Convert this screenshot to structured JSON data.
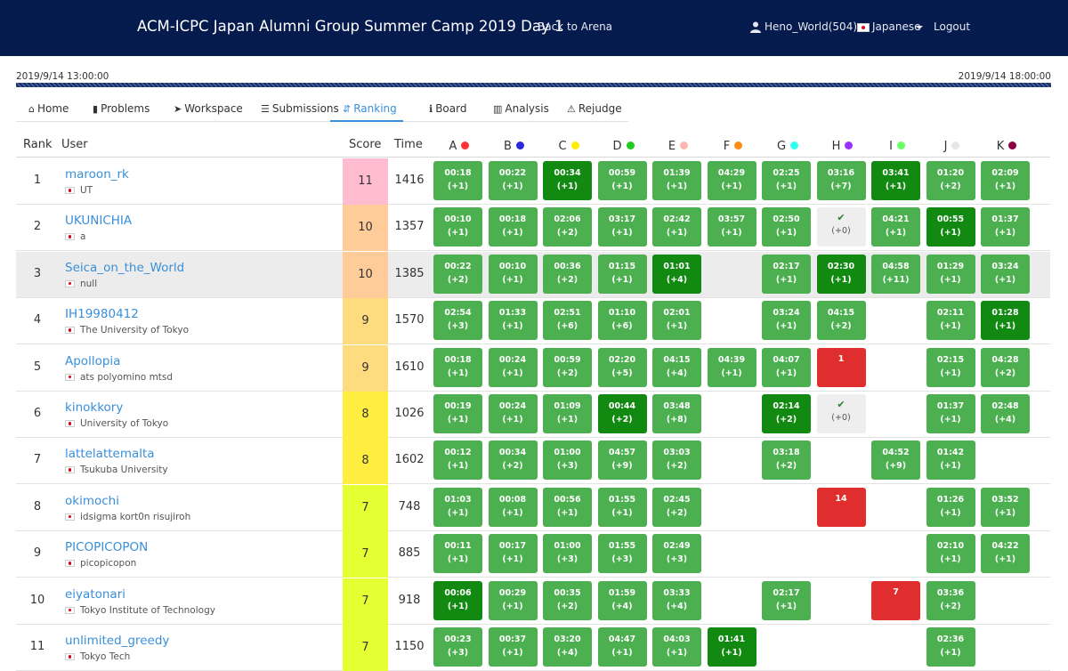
{
  "nav": {
    "title": "ACM-ICPC Japan Alumni Group Summer Camp 2019 Day 1",
    "back": "Back to Arena",
    "user": "Heno_World(504)",
    "lang": "Japanese",
    "logout": "Logout"
  },
  "contest": {
    "start": "2019/9/14 13:00:00",
    "end": "2019/9/14 18:00:00",
    "progress": 1.0
  },
  "tabs": [
    {
      "label": "Home",
      "icon": "home-icon",
      "glyph": "⌂"
    },
    {
      "label": "Problems",
      "icon": "file-icon",
      "glyph": "▮"
    },
    {
      "label": "Workspace",
      "icon": "send-icon",
      "glyph": "➤"
    },
    {
      "label": "Submissions",
      "icon": "list-icon",
      "glyph": "☰"
    },
    {
      "label": "Ranking",
      "icon": "sort-icon",
      "glyph": "⇵"
    },
    {
      "label": "Board",
      "icon": "info-icon",
      "glyph": "ℹ"
    },
    {
      "label": "Analysis",
      "icon": "chart-icon",
      "glyph": "▥"
    },
    {
      "label": "Rejudge",
      "icon": "warning-icon",
      "glyph": "⚠"
    }
  ],
  "active_tab": "Ranking",
  "headers": {
    "rank": "Rank",
    "user": "User",
    "score": "Score",
    "time": "Time"
  },
  "problems": [
    {
      "id": "A",
      "color": "#ff3333"
    },
    {
      "id": "B",
      "color": "#2b2bdb"
    },
    {
      "id": "C",
      "color": "#ffee00"
    },
    {
      "id": "D",
      "color": "#1fcc1f"
    },
    {
      "id": "E",
      "color": "#ffb8b0"
    },
    {
      "id": "F",
      "color": "#ff8c1a"
    },
    {
      "id": "G",
      "color": "#33ffee"
    },
    {
      "id": "H",
      "color": "#9b30ff"
    },
    {
      "id": "I",
      "color": "#66ff66"
    },
    {
      "id": "J",
      "color": "#e6e6e6"
    },
    {
      "id": "K",
      "color": "#8b0040"
    }
  ],
  "rows": [
    {
      "rank": "1",
      "name": "maroon_rk",
      "affiliation": "UT",
      "score": "11",
      "score_color": "#ffbcd0",
      "time": "1416",
      "highlight": false,
      "cells": [
        [
          "ac",
          "00:18",
          "(+1)"
        ],
        [
          "ac",
          "00:22",
          "(+1)"
        ],
        [
          "fa",
          "00:34",
          "(+1)"
        ],
        [
          "ac",
          "00:59",
          "(+1)"
        ],
        [
          "ac",
          "01:39",
          "(+1)"
        ],
        [
          "ac",
          "04:29",
          "(+1)"
        ],
        [
          "ac",
          "02:25",
          "(+1)"
        ],
        [
          "ac",
          "03:16",
          "(+7)"
        ],
        [
          "fa",
          "03:41",
          "(+1)"
        ],
        [
          "ac",
          "01:20",
          "(+2)"
        ],
        [
          "ac",
          "02:09",
          "(+1)"
        ]
      ]
    },
    {
      "rank": "2",
      "name": "UKUNICHIA",
      "affiliation": "a",
      "score": "10",
      "score_color": "#ffcc99",
      "time": "1357",
      "highlight": false,
      "cells": [
        [
          "ac",
          "00:10",
          "(+1)"
        ],
        [
          "ac",
          "00:18",
          "(+1)"
        ],
        [
          "ac",
          "02:06",
          "(+2)"
        ],
        [
          "ac",
          "03:17",
          "(+1)"
        ],
        [
          "ac",
          "02:42",
          "(+1)"
        ],
        [
          "ac",
          "03:57",
          "(+1)"
        ],
        [
          "ac",
          "02:50",
          "(+1)"
        ],
        [
          "pd",
          "✔",
          "(+0)"
        ],
        [
          "ac",
          "04:21",
          "(+1)"
        ],
        [
          "fa",
          "00:55",
          "(+1)"
        ],
        [
          "ac",
          "01:37",
          "(+1)"
        ]
      ]
    },
    {
      "rank": "3",
      "name": "Seica_on_the_World",
      "affiliation": "null",
      "score": "10",
      "score_color": "#ffcc99",
      "time": "1385",
      "highlight": true,
      "cells": [
        [
          "ac",
          "00:22",
          "(+2)"
        ],
        [
          "ac",
          "00:10",
          "(+1)"
        ],
        [
          "ac",
          "00:36",
          "(+2)"
        ],
        [
          "ac",
          "01:15",
          "(+1)"
        ],
        [
          "fa",
          "01:01",
          "(+4)"
        ],
        null,
        [
          "ac",
          "02:17",
          "(+1)"
        ],
        [
          "fa",
          "02:30",
          "(+1)"
        ],
        [
          "ac",
          "04:58",
          "(+11)"
        ],
        [
          "ac",
          "01:29",
          "(+1)"
        ],
        [
          "ac",
          "03:24",
          "(+1)"
        ]
      ]
    },
    {
      "rank": "4",
      "name": "IH19980412",
      "affiliation": "The University of Tokyo",
      "score": "9",
      "score_color": "#ffdb80",
      "time": "1570",
      "highlight": false,
      "cells": [
        [
          "ac",
          "02:54",
          "(+3)"
        ],
        [
          "ac",
          "01:33",
          "(+1)"
        ],
        [
          "ac",
          "02:51",
          "(+6)"
        ],
        [
          "ac",
          "01:10",
          "(+6)"
        ],
        [
          "ac",
          "02:01",
          "(+1)"
        ],
        null,
        [
          "ac",
          "03:24",
          "(+1)"
        ],
        [
          "ac",
          "04:15",
          "(+2)"
        ],
        null,
        [
          "ac",
          "02:11",
          "(+1)"
        ],
        [
          "fa",
          "01:28",
          "(+1)"
        ]
      ]
    },
    {
      "rank": "5",
      "name": "Apollopia",
      "affiliation": "ats polyomino mtsd",
      "score": "9",
      "score_color": "#ffdb80",
      "time": "1610",
      "highlight": false,
      "cells": [
        [
          "ac",
          "00:18",
          "(+1)"
        ],
        [
          "ac",
          "00:24",
          "(+1)"
        ],
        [
          "ac",
          "00:59",
          "(+2)"
        ],
        [
          "ac",
          "02:20",
          "(+5)"
        ],
        [
          "ac",
          "04:15",
          "(+4)"
        ],
        [
          "ac",
          "04:39",
          "(+1)"
        ],
        [
          "ac",
          "04:07",
          "(+1)"
        ],
        [
          "wa",
          "1",
          ""
        ],
        null,
        [
          "ac",
          "02:15",
          "(+1)"
        ],
        [
          "ac",
          "04:28",
          "(+2)"
        ]
      ]
    },
    {
      "rank": "6",
      "name": "kinokkory",
      "affiliation": "University of Tokyo",
      "score": "8",
      "score_color": "#ffee40",
      "time": "1026",
      "highlight": false,
      "cells": [
        [
          "ac",
          "00:19",
          "(+1)"
        ],
        [
          "ac",
          "00:24",
          "(+1)"
        ],
        [
          "ac",
          "01:09",
          "(+1)"
        ],
        [
          "fa",
          "00:44",
          "(+2)"
        ],
        [
          "ac",
          "03:48",
          "(+8)"
        ],
        null,
        [
          "fa",
          "02:14",
          "(+2)"
        ],
        [
          "pd",
          "✔",
          "(+0)"
        ],
        null,
        [
          "ac",
          "01:37",
          "(+1)"
        ],
        [
          "ac",
          "02:48",
          "(+4)"
        ]
      ]
    },
    {
      "rank": "7",
      "name": "lattelattemalta",
      "affiliation": "Tsukuba University",
      "score": "8",
      "score_color": "#ffee40",
      "time": "1602",
      "highlight": false,
      "cells": [
        [
          "ac",
          "00:12",
          "(+1)"
        ],
        [
          "ac",
          "00:34",
          "(+2)"
        ],
        [
          "ac",
          "01:00",
          "(+3)"
        ],
        [
          "ac",
          "04:57",
          "(+9)"
        ],
        [
          "ac",
          "03:03",
          "(+2)"
        ],
        null,
        [
          "ac",
          "03:18",
          "(+2)"
        ],
        null,
        [
          "ac",
          "04:52",
          "(+9)"
        ],
        [
          "ac",
          "01:42",
          "(+1)"
        ],
        null
      ]
    },
    {
      "rank": "8",
      "name": "okimochi",
      "affiliation": "idsigma kort0n risujiroh",
      "score": "7",
      "score_color": "#e6ff33",
      "time": "748",
      "highlight": false,
      "cells": [
        [
          "ac",
          "01:03",
          "(+1)"
        ],
        [
          "ac",
          "00:08",
          "(+1)"
        ],
        [
          "ac",
          "00:56",
          "(+1)"
        ],
        [
          "ac",
          "01:55",
          "(+1)"
        ],
        [
          "ac",
          "02:45",
          "(+2)"
        ],
        null,
        null,
        [
          "wa",
          "14",
          ""
        ],
        null,
        [
          "ac",
          "01:26",
          "(+1)"
        ],
        [
          "ac",
          "03:52",
          "(+1)"
        ]
      ]
    },
    {
      "rank": "9",
      "name": "PICOPICOPON",
      "affiliation": "picopicopon",
      "score": "7",
      "score_color": "#e6ff33",
      "time": "885",
      "highlight": false,
      "cells": [
        [
          "ac",
          "00:11",
          "(+1)"
        ],
        [
          "ac",
          "00:17",
          "(+1)"
        ],
        [
          "ac",
          "01:00",
          "(+3)"
        ],
        [
          "ac",
          "01:55",
          "(+3)"
        ],
        [
          "ac",
          "02:49",
          "(+3)"
        ],
        null,
        null,
        null,
        null,
        [
          "ac",
          "02:10",
          "(+1)"
        ],
        [
          "ac",
          "04:22",
          "(+1)"
        ]
      ]
    },
    {
      "rank": "10",
      "name": "eiyatonari",
      "affiliation": "Tokyo Institute of Technology",
      "score": "7",
      "score_color": "#e6ff33",
      "time": "918",
      "highlight": false,
      "cells": [
        [
          "fa",
          "00:06",
          "(+1)"
        ],
        [
          "ac",
          "00:29",
          "(+1)"
        ],
        [
          "ac",
          "00:35",
          "(+2)"
        ],
        [
          "ac",
          "01:59",
          "(+4)"
        ],
        [
          "ac",
          "03:33",
          "(+4)"
        ],
        null,
        [
          "ac",
          "02:17",
          "(+1)"
        ],
        null,
        [
          "wa",
          "7",
          ""
        ],
        [
          "ac",
          "03:36",
          "(+2)"
        ],
        null
      ]
    },
    {
      "rank": "11",
      "name": "unlimited_greedy",
      "affiliation": "Tokyo Tech",
      "score": "7",
      "score_color": "#e6ff33",
      "time": "1150",
      "highlight": false,
      "cells": [
        [
          "ac",
          "00:23",
          "(+3)"
        ],
        [
          "ac",
          "00:37",
          "(+1)"
        ],
        [
          "ac",
          "03:20",
          "(+4)"
        ],
        [
          "ac",
          "04:47",
          "(+1)"
        ],
        [
          "ac",
          "04:03",
          "(+1)"
        ],
        [
          "fa",
          "01:41",
          "(+1)"
        ],
        null,
        null,
        null,
        [
          "ac",
          "02:36",
          "(+1)"
        ],
        null
      ]
    }
  ]
}
